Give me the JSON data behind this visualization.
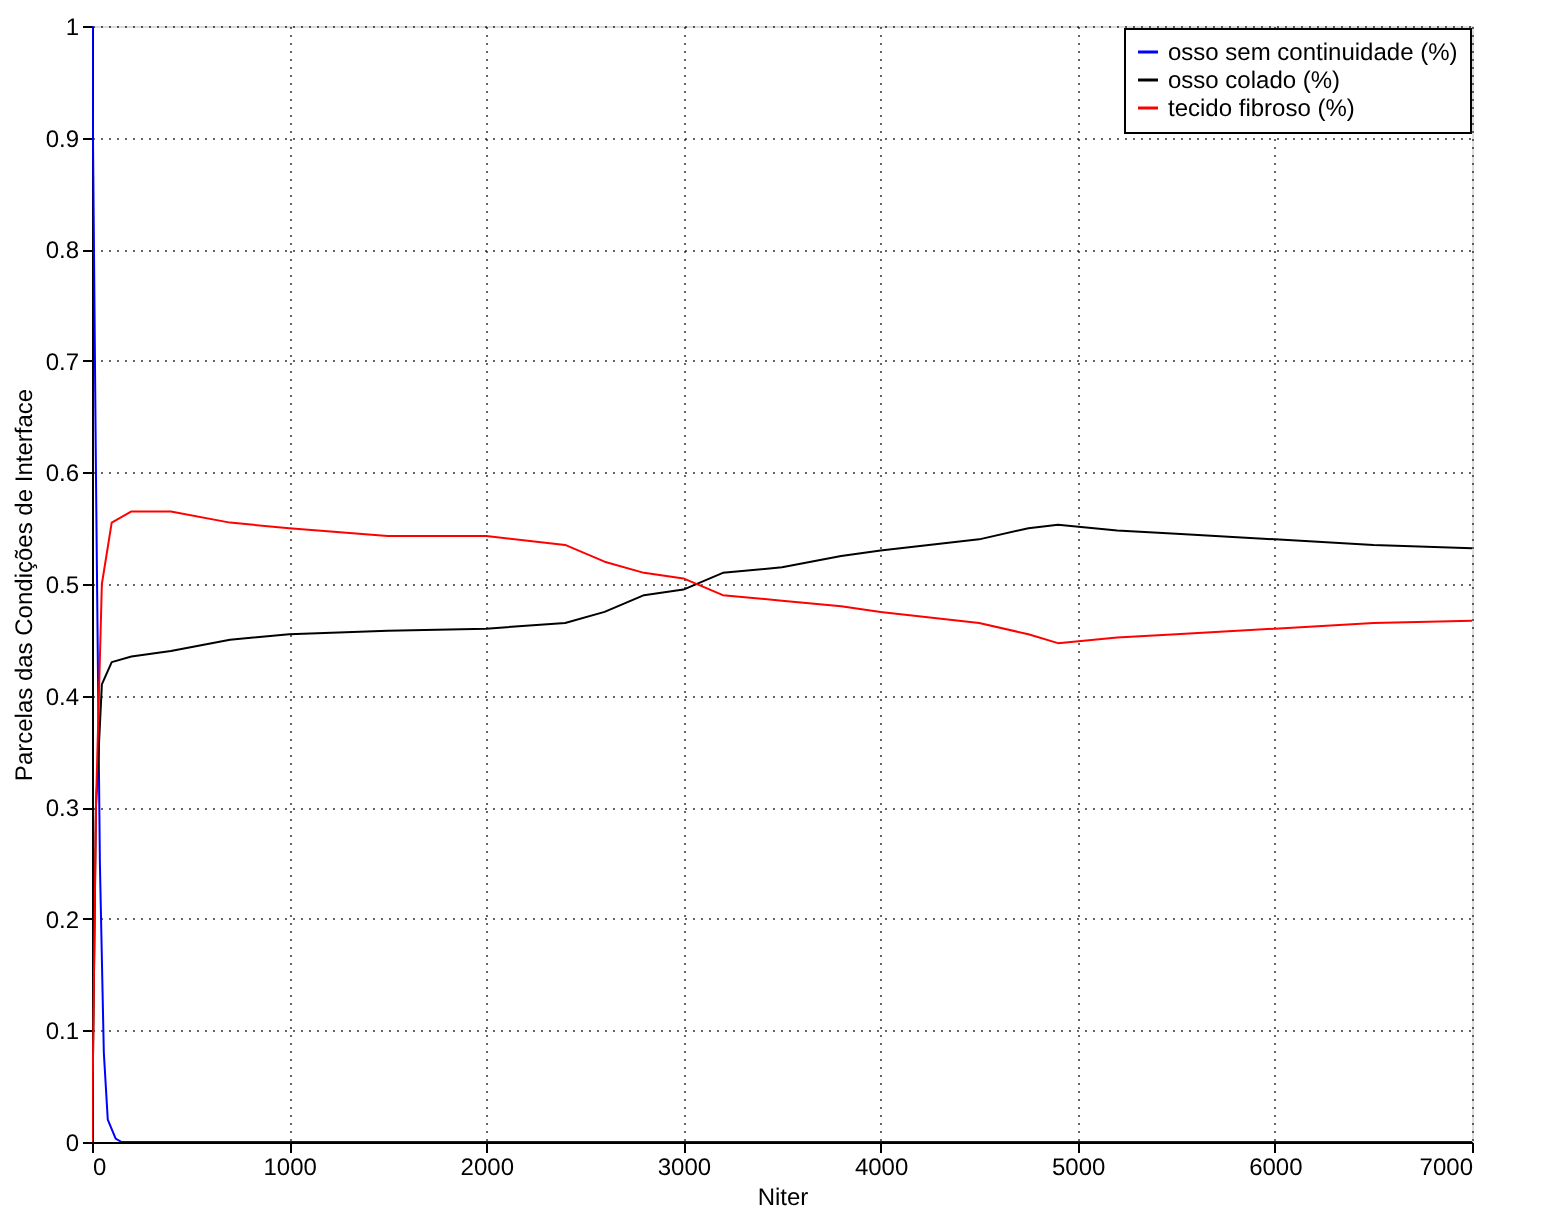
{
  "chart_data": {
    "type": "line",
    "xlabel": "Niter",
    "ylabel": "Parcelas das Condições de Interface",
    "xlim": [
      0,
      7000
    ],
    "ylim": [
      0,
      1
    ],
    "xticks": [
      0,
      1000,
      2000,
      3000,
      4000,
      5000,
      6000,
      7000
    ],
    "yticks": [
      0,
      0.1,
      0.2,
      0.3,
      0.4,
      0.5,
      0.6,
      0.7,
      0.8,
      0.9,
      1
    ],
    "grid": true,
    "legend": "top right",
    "series": [
      {
        "name": "osso sem continuidade (%)",
        "color": "#0000ff",
        "x": [
          0,
          20,
          40,
          60,
          80,
          120,
          150,
          7000
        ],
        "values": [
          1,
          0.6,
          0.25,
          0.08,
          0.02,
          0.003,
          0,
          0
        ]
      },
      {
        "name": "osso colado (%)",
        "color": "#000000",
        "x": [
          0,
          20,
          50,
          100,
          200,
          400,
          700,
          1000,
          1500,
          2000,
          2400,
          2600,
          2800,
          3000,
          3200,
          3500,
          3800,
          4000,
          4500,
          4750,
          4900,
          5200,
          5500,
          6000,
          6500,
          7000
        ],
        "values": [
          0,
          0.3,
          0.41,
          0.43,
          0.435,
          0.44,
          0.45,
          0.455,
          0.458,
          0.46,
          0.465,
          0.475,
          0.49,
          0.495,
          0.51,
          0.515,
          0.525,
          0.53,
          0.54,
          0.55,
          0.553,
          0.548,
          0.545,
          0.54,
          0.535,
          0.532
        ]
      },
      {
        "name": "tecido fibroso (%)",
        "color": "#ff0000",
        "x": [
          0,
          20,
          50,
          100,
          200,
          400,
          700,
          1000,
          1500,
          2000,
          2400,
          2600,
          2800,
          3000,
          3200,
          3500,
          3800,
          4000,
          4500,
          4750,
          4900,
          5200,
          5500,
          6000,
          6500,
          7000
        ],
        "values": [
          0,
          0.3,
          0.5,
          0.555,
          0.565,
          0.565,
          0.555,
          0.55,
          0.543,
          0.543,
          0.535,
          0.52,
          0.51,
          0.505,
          0.49,
          0.485,
          0.48,
          0.475,
          0.465,
          0.455,
          0.447,
          0.452,
          0.455,
          0.46,
          0.465,
          0.467
        ]
      }
    ]
  }
}
